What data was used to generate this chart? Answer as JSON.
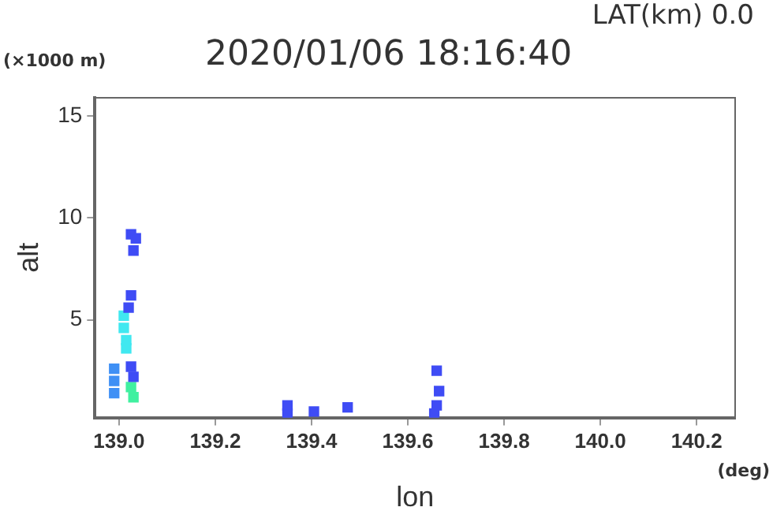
{
  "chart_data": {
    "type": "scatter",
    "title": "2020/01/06 18:16:40",
    "subtitle": "LAT(km) 0.0",
    "xlabel": "lon",
    "ylabel": "alt",
    "annotations": [
      "(×1000 m)",
      "(deg)"
    ],
    "xlim": [
      138.95,
      140.28
    ],
    "xticks": [
      {
        "value": 139.0,
        "label": "139.0"
      },
      {
        "value": 139.2,
        "label": "139.2"
      },
      {
        "value": 139.4,
        "label": "139.4"
      },
      {
        "value": 139.6,
        "label": "139.6"
      },
      {
        "value": 139.8,
        "label": "139.8"
      },
      {
        "value": 140.0,
        "label": "140.0"
      },
      {
        "value": 140.2,
        "label": "140.2"
      }
    ],
    "ylim": [
      0.2,
      15.9
    ],
    "yticks": [
      5,
      10,
      15
    ],
    "grid": false,
    "legend": false,
    "marker": "square",
    "series": [
      {
        "color": "#3f4cf5",
        "x": [
          139.025,
          139.03,
          139.035,
          139.025,
          139.02,
          139.025,
          139.03,
          139.35,
          139.35,
          139.405,
          139.475,
          139.66,
          139.665,
          139.66,
          139.655
        ],
        "values": [
          9.2,
          8.4,
          9.0,
          6.2,
          5.6,
          2.7,
          2.2,
          0.8,
          0.4,
          0.5,
          0.7,
          2.5,
          1.5,
          0.8,
          0.4
        ]
      },
      {
        "color": "#3f90f5",
        "x": [
          138.99,
          138.99,
          138.99
        ],
        "values": [
          2.6,
          2.0,
          1.4
        ]
      },
      {
        "color": "#40e8f0",
        "x": [
          139.01,
          139.01,
          139.015,
          139.015
        ],
        "values": [
          5.2,
          4.6,
          4.0,
          3.6
        ]
      },
      {
        "color": "#40f0a0",
        "x": [
          139.025,
          139.03
        ],
        "values": [
          1.7,
          1.2
        ]
      }
    ]
  }
}
